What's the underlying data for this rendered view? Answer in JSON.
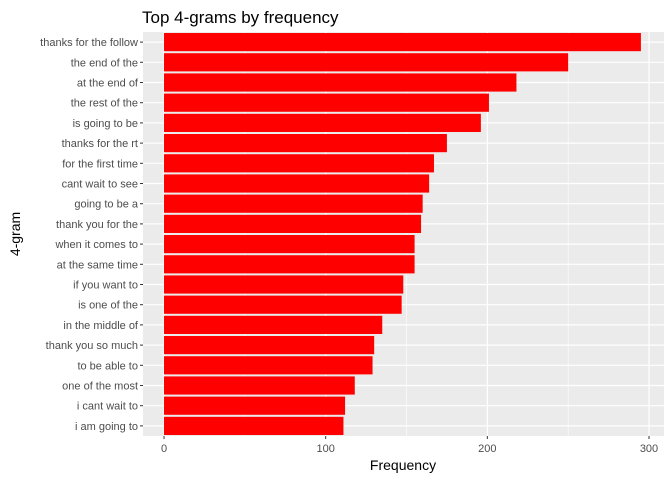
{
  "chart_data": {
    "type": "bar",
    "orientation": "horizontal",
    "title": "Top 4-grams by frequency",
    "xlabel": "Frequency",
    "ylabel": "4-gram",
    "xlim": [
      0,
      310
    ],
    "x_ticks": [
      0,
      100,
      200,
      300
    ],
    "grid": true,
    "bar_color": "#FF0000",
    "panel_color": "#EBEBEB",
    "grid_color": "#FFFFFF",
    "categories": [
      "thanks for the follow",
      "the end of the",
      "at the end of",
      "the rest of the",
      "is going to be",
      "thanks for the rt",
      "for the first time",
      "cant wait to see",
      "going to be a",
      "thank you for the",
      "when it comes to",
      "at the same time",
      "if you want to",
      "is one of the",
      "in the middle of",
      "thank you so much",
      "to be able to",
      "one of the most",
      "i cant wait to",
      "i am going to"
    ],
    "values": [
      295,
      250,
      218,
      201,
      196,
      175,
      167,
      164,
      160,
      159,
      155,
      155,
      148,
      147,
      135,
      130,
      129,
      118,
      112,
      111
    ]
  }
}
